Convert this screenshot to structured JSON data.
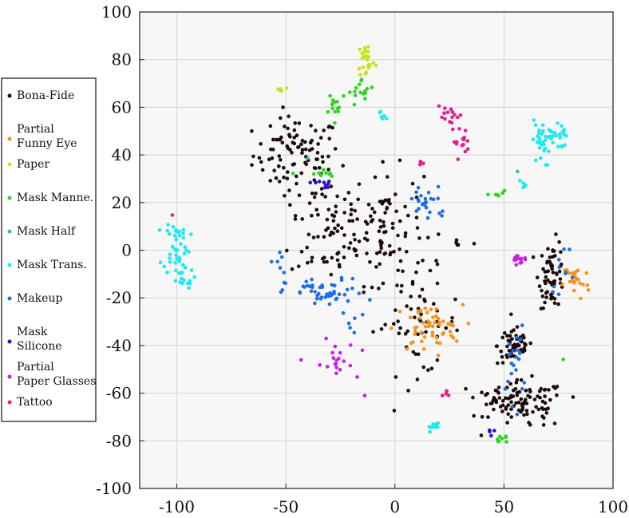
{
  "chart_data": {
    "type": "scatter",
    "title": "",
    "xlabel": "",
    "ylabel": "",
    "xlim": [
      -117,
      100
    ],
    "ylim": [
      -100,
      100
    ],
    "xticks": [
      -100,
      -50,
      0,
      50,
      100
    ],
    "yticks": [
      -100,
      -80,
      -60,
      -40,
      -20,
      0,
      20,
      40,
      60,
      80,
      100
    ],
    "xtick_labels": [
      "-100",
      "-50",
      "0",
      "50",
      "100"
    ],
    "ytick_labels": [
      "-100",
      "-80",
      "-60",
      "-40",
      "-20",
      "0",
      "20",
      "40",
      "60",
      "80",
      "100"
    ],
    "grid": true,
    "legend_position": "left",
    "series": [
      {
        "name": "Bona-Fide",
        "color": "#1a0a0a",
        "clusters": [
          {
            "center": [
              -45,
              40
            ],
            "spread": [
              10,
              8
            ],
            "n": 95
          },
          {
            "center": [
              -30,
              10
            ],
            "spread": [
              9,
              12
            ],
            "n": 70
          },
          {
            "center": [
              -5,
              10
            ],
            "spread": [
              9,
              12
            ],
            "n": 90
          },
          {
            "center": [
              10,
              -30
            ],
            "spread": [
              10,
              11
            ],
            "n": 60
          },
          {
            "center": [
              55,
              -40
            ],
            "spread": [
              4,
              4
            ],
            "n": 55
          },
          {
            "center": [
              60,
              -65
            ],
            "spread": [
              9,
              5
            ],
            "n": 85
          },
          {
            "center": [
              72,
              -10
            ],
            "spread": [
              3,
              7
            ],
            "n": 60
          },
          {
            "center": [
              45,
              -62
            ],
            "spread": [
              4,
              2
            ],
            "n": 20
          },
          {
            "center": [
              30,
              2
            ],
            "spread": [
              2,
              1
            ],
            "n": 5
          }
        ]
      },
      {
        "name": "Partial\nFunny Eye",
        "color": "#f5921e",
        "clusters": [
          {
            "center": [
              15,
              -33
            ],
            "spread": [
              8,
              5
            ],
            "n": 55
          },
          {
            "center": [
              83,
              -13
            ],
            "spread": [
              3,
              4
            ],
            "n": 25
          }
        ]
      },
      {
        "name": "Paper",
        "color": "#c8e21e",
        "clusters": [
          {
            "center": [
              -53,
              68
            ],
            "spread": [
              2,
              2
            ],
            "n": 5
          },
          {
            "center": [
              -13,
              80
            ],
            "spread": [
              2,
              4
            ],
            "n": 25
          }
        ]
      },
      {
        "name": "Mask Manne.",
        "color": "#2ad61e",
        "clusters": [
          {
            "center": [
              -27,
              62
            ],
            "spread": [
              3,
              3
            ],
            "n": 14
          },
          {
            "center": [
              -15,
              66
            ],
            "spread": [
              3,
              3
            ],
            "n": 16
          },
          {
            "center": [
              -35,
              32
            ],
            "spread": [
              4,
              1
            ],
            "n": 10
          },
          {
            "center": [
              47,
              24
            ],
            "spread": [
              2,
              1
            ],
            "n": 6
          },
          {
            "center": [
              49,
              -79
            ],
            "spread": [
              2,
              1
            ],
            "n": 8
          },
          {
            "center": [
              78,
              -45
            ],
            "spread": [
              0.5,
              0.5
            ],
            "n": 1
          }
        ]
      },
      {
        "name": "Mask Half",
        "color": "#1ecf7a",
        "clusters": [
          {
            "center": [
              -40,
              39
            ],
            "spread": [
              0.5,
              0.5
            ],
            "n": 1
          },
          {
            "center": [
              55,
              33
            ],
            "spread": [
              0.5,
              0.5
            ],
            "n": 1
          }
        ]
      },
      {
        "name": "Mask Trans.",
        "color": "#1ee8f0",
        "clusters": [
          {
            "center": [
              -100,
              2
            ],
            "spread": [
              3,
              6
            ],
            "n": 45
          },
          {
            "center": [
              -98,
              -12
            ],
            "spread": [
              3,
              2
            ],
            "n": 15
          },
          {
            "center": [
              67,
              45
            ],
            "spread": [
              2,
              5
            ],
            "n": 30
          },
          {
            "center": [
              75,
              48
            ],
            "spread": [
              2,
              3
            ],
            "n": 20
          },
          {
            "center": [
              58,
              28
            ],
            "spread": [
              1,
              1
            ],
            "n": 5
          },
          {
            "center": [
              -5,
              57
            ],
            "spread": [
              1,
              2
            ],
            "n": 6
          },
          {
            "center": [
              17,
              -74
            ],
            "spread": [
              2,
              1
            ],
            "n": 10
          }
        ]
      },
      {
        "name": "Makeup",
        "color": "#1e6ee6",
        "clusters": [
          {
            "center": [
              -32,
              -18
            ],
            "spread": [
              9,
              3
            ],
            "n": 50
          },
          {
            "center": [
              15,
              20
            ],
            "spread": [
              5,
              4
            ],
            "n": 25
          },
          {
            "center": [
              55,
              -48
            ],
            "spread": [
              2,
              8
            ],
            "n": 20
          },
          {
            "center": [
              -53,
              -5
            ],
            "spread": [
              2,
              4
            ],
            "n": 6
          },
          {
            "center": [
              -18,
              -30
            ],
            "spread": [
              3,
              3
            ],
            "n": 6
          },
          {
            "center": [
              77,
              -8
            ],
            "spread": [
              3,
              5
            ],
            "n": 10
          }
        ]
      },
      {
        "name": "Mask\nSilicone",
        "color": "#2a10c8",
        "clusters": [
          {
            "center": [
              -33,
              28
            ],
            "spread": [
              3,
              1
            ],
            "n": 10
          },
          {
            "center": [
              44,
              -76
            ],
            "spread": [
              1,
              1
            ],
            "n": 4
          }
        ]
      },
      {
        "name": "Partial\nPaper Glasses",
        "color": "#c81ee6",
        "clusters": [
          {
            "center": [
              -28,
              -48
            ],
            "spread": [
              5,
              5
            ],
            "n": 20
          },
          {
            "center": [
              57,
              -3
            ],
            "spread": [
              3,
              1
            ],
            "n": 15
          },
          {
            "center": [
              -13,
              -61
            ],
            "spread": [
              0.5,
              0.5
            ],
            "n": 1
          }
        ]
      },
      {
        "name": "Tattoo",
        "color": "#e61e8c",
        "clusters": [
          {
            "center": [
              25,
              56
            ],
            "spread": [
              3,
              2
            ],
            "n": 15
          },
          {
            "center": [
              30,
              46
            ],
            "spread": [
              2,
              3
            ],
            "n": 15
          },
          {
            "center": [
              -102,
              14
            ],
            "spread": [
              0.5,
              0.5
            ],
            "n": 1
          },
          {
            "center": [
              24,
              -60
            ],
            "spread": [
              1,
              2
            ],
            "n": 5
          },
          {
            "center": [
              13,
              36
            ],
            "spread": [
              2,
              1
            ],
            "n": 4
          }
        ]
      }
    ]
  },
  "colors": {
    "plot_background": "#f7f7f7",
    "grid": "#d4d4d4",
    "axis": "#222222"
  }
}
